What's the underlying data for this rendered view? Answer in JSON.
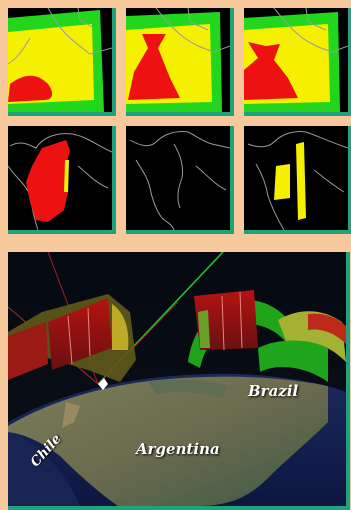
{
  "figure": {
    "colors": {
      "background": "#f8c99c",
      "frame_accent": "#1fa37c",
      "map_background": "#000000",
      "coastline": "#9a9a9a",
      "level_high": "#ee1111",
      "level_mid": "#f5f000",
      "level_low": "#22d61e"
    },
    "top_row_panels": [
      {
        "name": "panel-1",
        "bands": [
          "red",
          "yellow",
          "green"
        ]
      },
      {
        "name": "panel-2",
        "bands": [
          "red",
          "yellow",
          "green"
        ]
      },
      {
        "name": "panel-3",
        "bands": [
          "red",
          "yellow",
          "green"
        ]
      }
    ],
    "middle_row_panels": [
      {
        "name": "panel-4",
        "fill": "red"
      },
      {
        "name": "panel-5",
        "fill": "none"
      },
      {
        "name": "panel-6",
        "fill": "yellow"
      }
    ],
    "globe_view": {
      "labels": {
        "brazil": "Brazil",
        "argentina": "Argentina",
        "chile": "Chile"
      }
    }
  }
}
